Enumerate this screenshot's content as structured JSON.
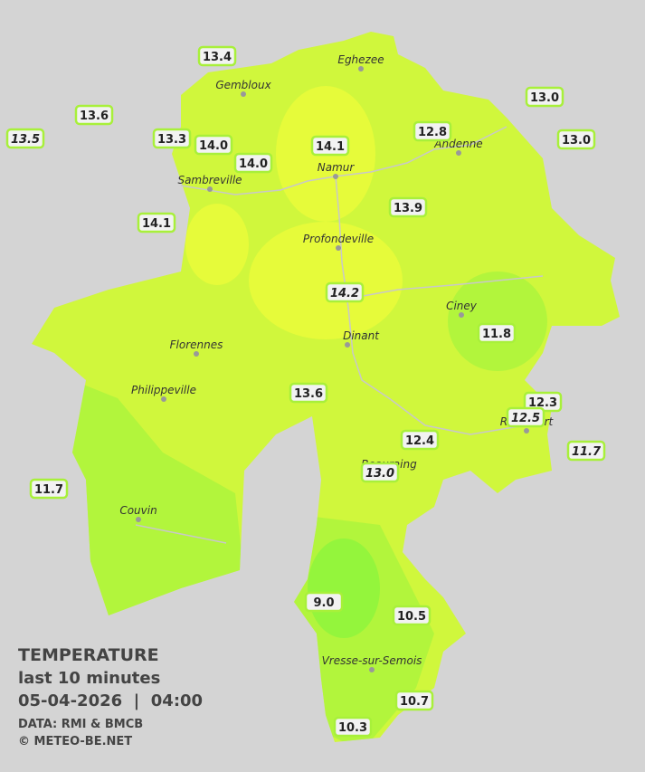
{
  "legend": {
    "title": "TEMPERATURE",
    "subtitle": "last 10 minutes",
    "date": "05-04-2026  |  04:00",
    "source": "DATA: RMI & BMCB",
    "copyright": "© METEO-BE.NET"
  },
  "cities": [
    "Eghezee",
    "Gembloux",
    "Andenne",
    "Namur",
    "Sambreville",
    "Profondeville",
    "Ciney",
    "Dinant",
    "Florennes",
    "Philippeville",
    "Beauraing",
    "Rochefort",
    "Couvin",
    "Vresse-sur-Semois"
  ],
  "stations": [
    "13.4",
    "13.6",
    "13.5",
    "13.3",
    "14.0",
    "14.1",
    "12.8",
    "13.0",
    "13.0",
    "14.0",
    "13.9",
    "14.1",
    "14.2",
    "11.8",
    "13.6",
    "12.3",
    "12.5",
    "12.4",
    "13.0",
    "11.7",
    "11.7",
    "9.0",
    "10.5",
    "10.7",
    "10.3"
  ]
}
